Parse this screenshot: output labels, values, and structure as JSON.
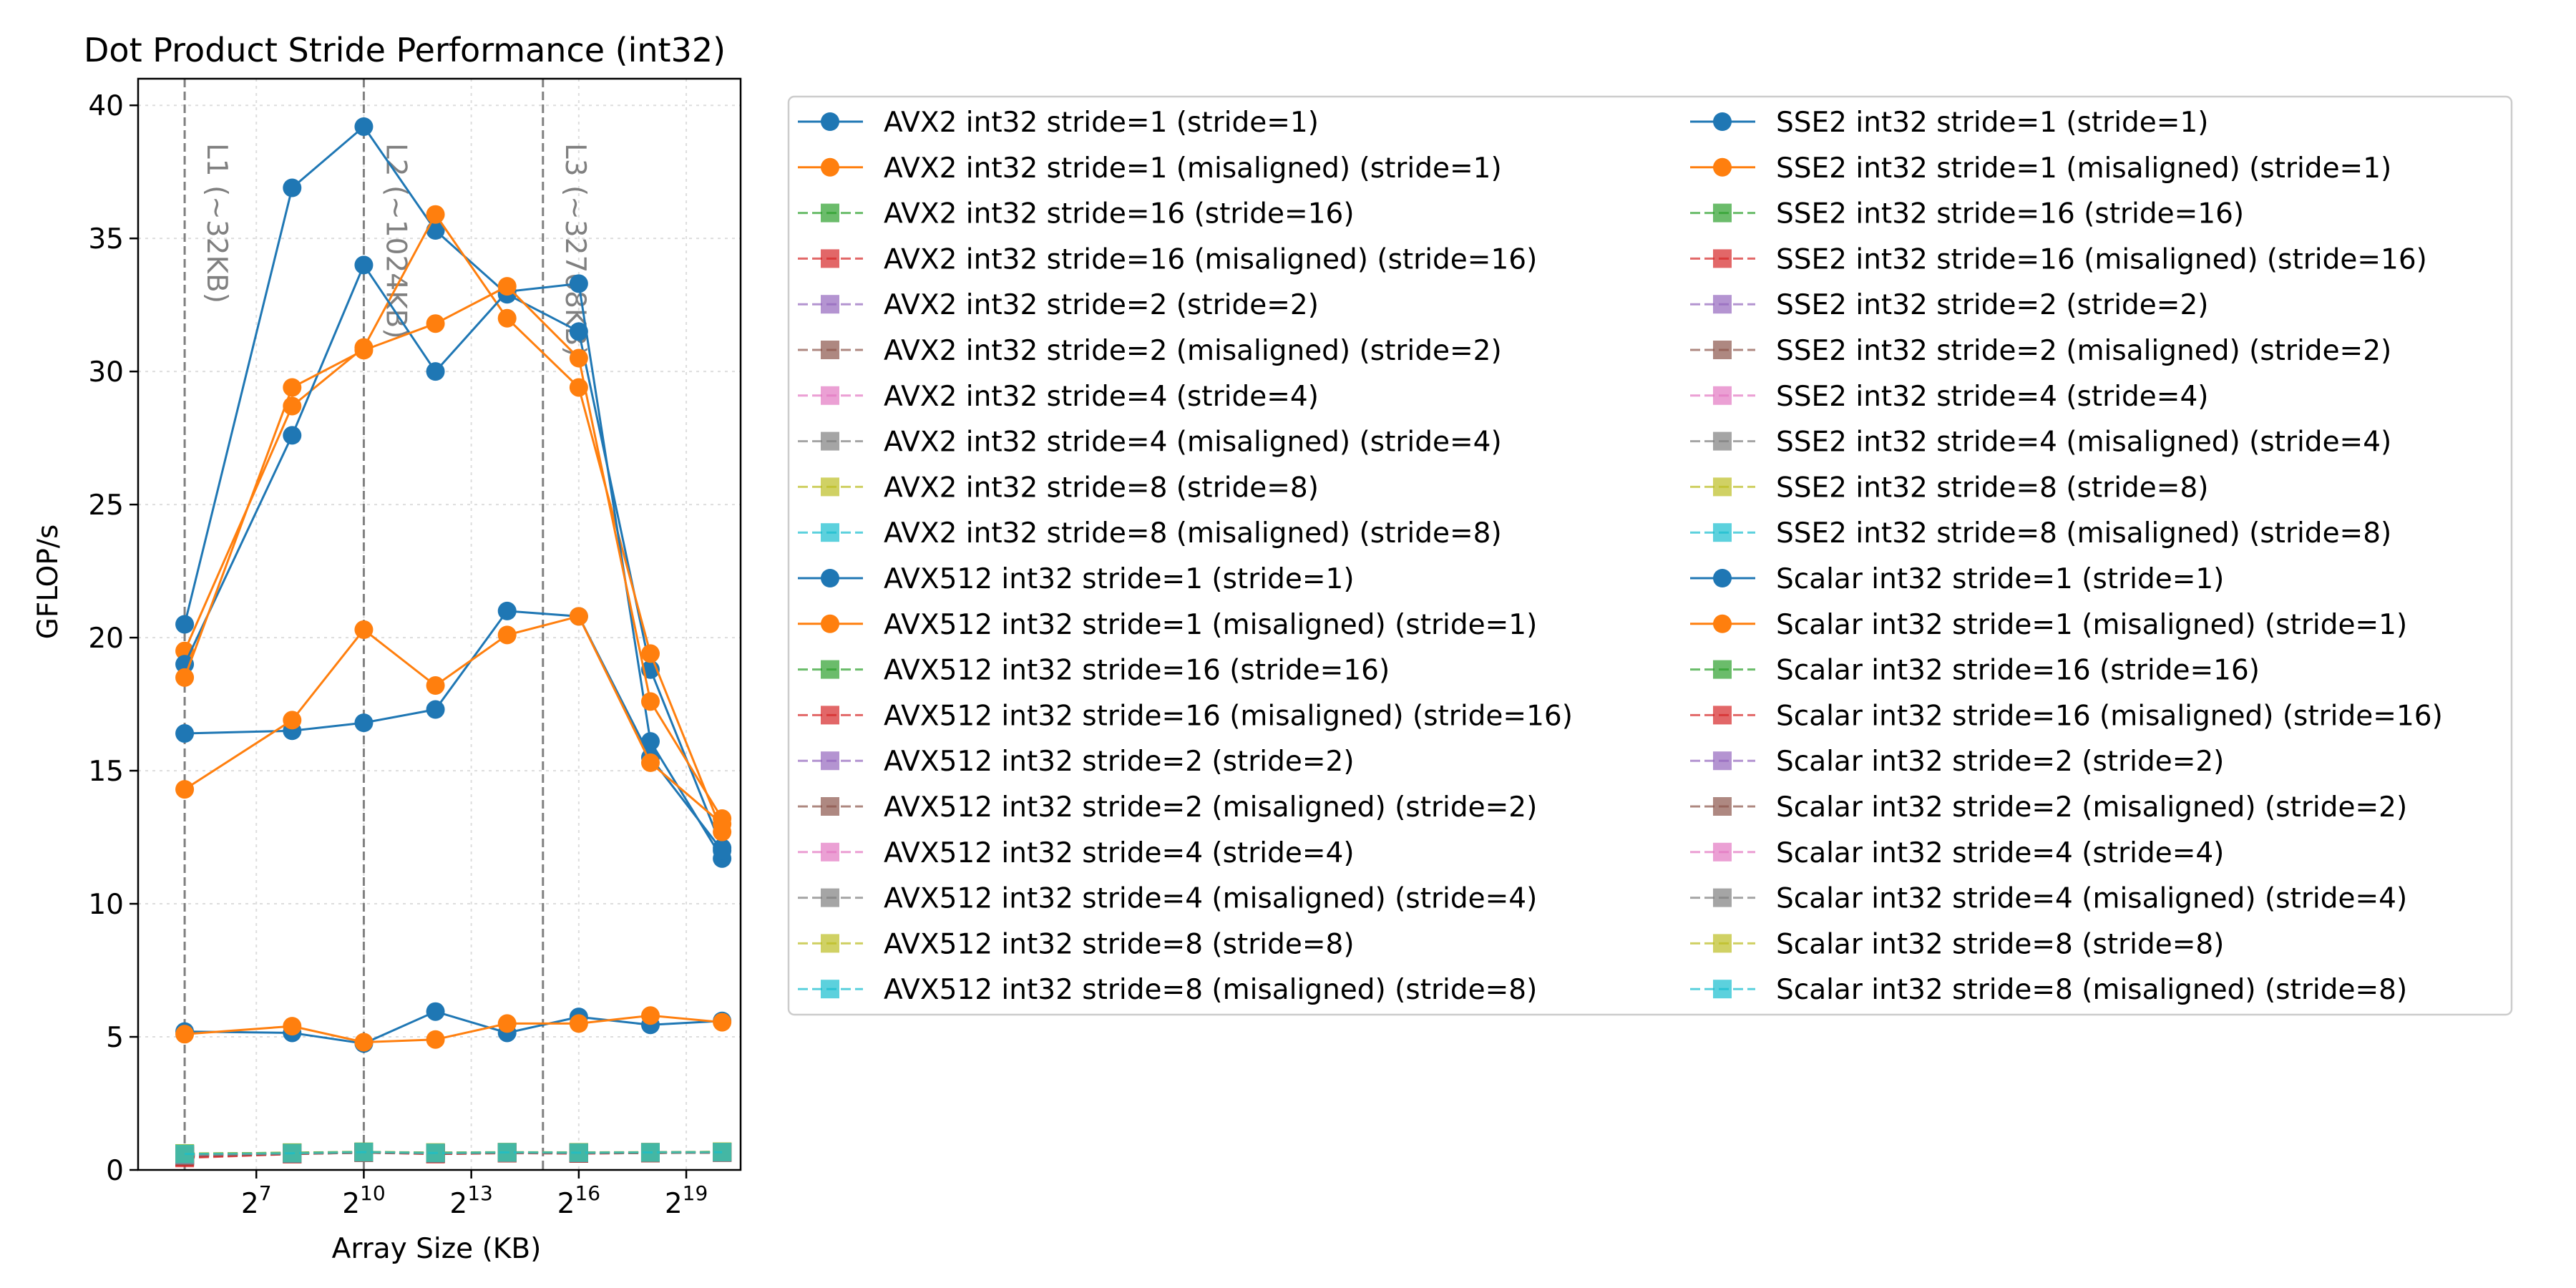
{
  "chart_data": {
    "type": "line",
    "title": "Dot Product Stride Performance (int32)",
    "xlabel": "Array Size (KB)",
    "ylabel": "GFLOP/s",
    "x_scale": "log2",
    "xlim": [
      13,
      1500000
    ],
    "ylim": [
      0,
      41
    ],
    "x": [
      32,
      256,
      1024,
      4096,
      16384,
      65536,
      262144,
      1048576
    ],
    "x_ticks": [
      {
        "value": 128,
        "base": "2",
        "exp": "7"
      },
      {
        "value": 1024,
        "base": "2",
        "exp": "10"
      },
      {
        "value": 8192,
        "base": "2",
        "exp": "13"
      },
      {
        "value": 65536,
        "base": "2",
        "exp": "16"
      },
      {
        "value": 524288,
        "base": "2",
        "exp": "19"
      }
    ],
    "y_ticks": [
      0,
      5,
      10,
      15,
      20,
      25,
      30,
      35,
      40
    ],
    "grid": true,
    "legend_position": "outside-right",
    "cache_lines": [
      {
        "x": 32,
        "label": "L1 (~32KB)"
      },
      {
        "x": 1024,
        "label": "L2 (~1024KB)"
      },
      {
        "x": 32768,
        "label": "L3 (~32768KB)"
      }
    ],
    "colors": {
      "blue": "#1f77b4",
      "orange": "#ff7f0e",
      "green": "#2ca02c",
      "red": "#d62728",
      "purple": "#9467bd",
      "brown": "#8c564b",
      "pink": "#e377c2",
      "gray": "#7f7f7f",
      "olive": "#bcbd22",
      "cyan": "#17becf"
    },
    "series": [
      {
        "name": "AVX2 int32 stride=1 (stride=1)",
        "color": "#1f77b4",
        "style": "solid",
        "marker": "circle",
        "values": [
          20.5,
          36.9,
          39.2,
          35.3,
          32.9,
          31.5,
          18.8,
          12.1
        ]
      },
      {
        "name": "AVX2 int32 stride=1 (misaligned) (stride=1)",
        "color": "#ff7f0e",
        "style": "solid",
        "marker": "circle",
        "values": [
          19.5,
          28.7,
          30.9,
          35.9,
          32.0,
          29.4,
          19.4,
          12.7
        ]
      },
      {
        "name": "AVX2 int32 stride=16 (stride=16)",
        "color": "#2ca02c",
        "style": "dashed",
        "marker": "square",
        "values": [
          0.6,
          0.65,
          0.68,
          0.62,
          0.66,
          0.64,
          0.66,
          0.68
        ]
      },
      {
        "name": "AVX2 int32 stride=16 (misaligned) (stride=16)",
        "color": "#d62728",
        "style": "dashed",
        "marker": "square",
        "values": [
          0.45,
          0.6,
          0.66,
          0.6,
          0.64,
          0.62,
          0.64,
          0.66
        ]
      },
      {
        "name": "AVX2 int32 stride=2 (stride=2)",
        "color": "#9467bd",
        "style": "dashed",
        "marker": "square",
        "values": [
          0.55,
          0.62,
          0.66,
          0.63,
          0.65,
          0.64,
          0.65,
          0.67
        ]
      },
      {
        "name": "AVX2 int32 stride=2 (misaligned) (stride=2)",
        "color": "#8c564b",
        "style": "dashed",
        "marker": "square",
        "values": [
          0.5,
          0.61,
          0.65,
          0.62,
          0.64,
          0.63,
          0.64,
          0.66
        ]
      },
      {
        "name": "AVX2 int32 stride=4 (stride=4)",
        "color": "#e377c2",
        "style": "dashed",
        "marker": "square",
        "values": [
          0.58,
          0.63,
          0.67,
          0.64,
          0.66,
          0.65,
          0.66,
          0.67
        ]
      },
      {
        "name": "AVX2 int32 stride=4 (misaligned) (stride=4)",
        "color": "#7f7f7f",
        "style": "dashed",
        "marker": "square",
        "values": [
          0.56,
          0.62,
          0.66,
          0.63,
          0.65,
          0.64,
          0.65,
          0.66
        ]
      },
      {
        "name": "AVX2 int32 stride=8 (stride=8)",
        "color": "#bcbd22",
        "style": "dashed",
        "marker": "square",
        "values": [
          0.62,
          0.64,
          0.68,
          0.65,
          0.67,
          0.66,
          0.67,
          0.68
        ]
      },
      {
        "name": "AVX2 int32 stride=8 (misaligned) (stride=8)",
        "color": "#17becf",
        "style": "dashed",
        "marker": "square",
        "values": [
          0.6,
          0.63,
          0.67,
          0.64,
          0.66,
          0.65,
          0.66,
          0.67
        ]
      },
      {
        "name": "AVX512 int32 stride=1 (stride=1)",
        "color": "#1f77b4",
        "style": "solid",
        "marker": "circle",
        "values": [
          19.0,
          27.6,
          34.0,
          30.0,
          33.0,
          33.3,
          16.1,
          11.7
        ]
      },
      {
        "name": "AVX512 int32 stride=1 (misaligned) (stride=1)",
        "color": "#ff7f0e",
        "style": "solid",
        "marker": "circle",
        "values": [
          18.5,
          29.4,
          30.8,
          31.8,
          33.2,
          30.5,
          17.6,
          13.2
        ]
      },
      {
        "name": "AVX512 int32 stride=16 (stride=16)",
        "color": "#2ca02c",
        "style": "dashed",
        "marker": "square",
        "values": [
          0.58,
          0.64,
          0.67,
          0.63,
          0.65,
          0.64,
          0.65,
          0.67
        ]
      },
      {
        "name": "AVX512 int32 stride=16 (misaligned) (stride=16)",
        "color": "#d62728",
        "style": "dashed",
        "marker": "square",
        "values": [
          0.48,
          0.6,
          0.65,
          0.61,
          0.64,
          0.62,
          0.64,
          0.66
        ]
      },
      {
        "name": "AVX512 int32 stride=2 (stride=2)",
        "color": "#9467bd",
        "style": "dashed",
        "marker": "square",
        "values": [
          0.55,
          0.62,
          0.66,
          0.63,
          0.65,
          0.64,
          0.65,
          0.66
        ]
      },
      {
        "name": "AVX512 int32 stride=2 (misaligned) (stride=2)",
        "color": "#8c564b",
        "style": "dashed",
        "marker": "square",
        "values": [
          0.52,
          0.61,
          0.65,
          0.62,
          0.64,
          0.63,
          0.64,
          0.66
        ]
      },
      {
        "name": "AVX512 int32 stride=4 (stride=4)",
        "color": "#e377c2",
        "style": "dashed",
        "marker": "square",
        "values": [
          0.57,
          0.63,
          0.66,
          0.64,
          0.65,
          0.65,
          0.66,
          0.67
        ]
      },
      {
        "name": "AVX512 int32 stride=4 (misaligned) (stride=4)",
        "color": "#7f7f7f",
        "style": "dashed",
        "marker": "square",
        "values": [
          0.55,
          0.62,
          0.66,
          0.63,
          0.65,
          0.64,
          0.65,
          0.66
        ]
      },
      {
        "name": "AVX512 int32 stride=8 (stride=8)",
        "color": "#bcbd22",
        "style": "dashed",
        "marker": "square",
        "values": [
          0.61,
          0.64,
          0.67,
          0.65,
          0.66,
          0.66,
          0.66,
          0.68
        ]
      },
      {
        "name": "AVX512 int32 stride=8 (misaligned) (stride=8)",
        "color": "#17becf",
        "style": "dashed",
        "marker": "square",
        "values": [
          0.6,
          0.63,
          0.67,
          0.64,
          0.66,
          0.65,
          0.66,
          0.67
        ]
      },
      {
        "name": "SSE2 int32 stride=1 (stride=1)",
        "color": "#1f77b4",
        "style": "solid",
        "marker": "circle",
        "values": [
          16.4,
          16.5,
          16.8,
          17.3,
          21.0,
          20.8,
          15.5,
          12.0
        ]
      },
      {
        "name": "SSE2 int32 stride=1 (misaligned) (stride=1)",
        "color": "#ff7f0e",
        "style": "solid",
        "marker": "circle",
        "values": [
          14.3,
          16.9,
          20.3,
          18.2,
          20.1,
          20.8,
          15.3,
          13.0
        ]
      },
      {
        "name": "SSE2 int32 stride=16 (stride=16)",
        "color": "#2ca02c",
        "style": "dashed",
        "marker": "square",
        "values": [
          0.59,
          0.64,
          0.67,
          0.63,
          0.65,
          0.64,
          0.65,
          0.67
        ]
      },
      {
        "name": "SSE2 int32 stride=16 (misaligned) (stride=16)",
        "color": "#d62728",
        "style": "dashed",
        "marker": "square",
        "values": [
          0.5,
          0.61,
          0.66,
          0.61,
          0.64,
          0.63,
          0.64,
          0.66
        ]
      },
      {
        "name": "SSE2 int32 stride=2 (stride=2)",
        "color": "#9467bd",
        "style": "dashed",
        "marker": "square",
        "values": [
          0.56,
          0.62,
          0.66,
          0.63,
          0.65,
          0.64,
          0.65,
          0.66
        ]
      },
      {
        "name": "SSE2 int32 stride=2 (misaligned) (stride=2)",
        "color": "#8c564b",
        "style": "dashed",
        "marker": "square",
        "values": [
          0.53,
          0.61,
          0.65,
          0.62,
          0.64,
          0.63,
          0.64,
          0.66
        ]
      },
      {
        "name": "SSE2 int32 stride=4 (stride=4)",
        "color": "#e377c2",
        "style": "dashed",
        "marker": "square",
        "values": [
          0.57,
          0.63,
          0.66,
          0.64,
          0.65,
          0.65,
          0.66,
          0.67
        ]
      },
      {
        "name": "SSE2 int32 stride=4 (misaligned) (stride=4)",
        "color": "#7f7f7f",
        "style": "dashed",
        "marker": "square",
        "values": [
          0.55,
          0.62,
          0.66,
          0.63,
          0.65,
          0.64,
          0.65,
          0.66
        ]
      },
      {
        "name": "SSE2 int32 stride=8 (stride=8)",
        "color": "#bcbd22",
        "style": "dashed",
        "marker": "square",
        "values": [
          0.61,
          0.64,
          0.67,
          0.65,
          0.66,
          0.66,
          0.66,
          0.68
        ]
      },
      {
        "name": "SSE2 int32 stride=8 (misaligned) (stride=8)",
        "color": "#17becf",
        "style": "dashed",
        "marker": "square",
        "values": [
          0.6,
          0.63,
          0.67,
          0.64,
          0.66,
          0.65,
          0.66,
          0.67
        ]
      },
      {
        "name": "Scalar int32 stride=1 (stride=1)",
        "color": "#1f77b4",
        "style": "solid",
        "marker": "circle",
        "values": [
          5.2,
          5.15,
          4.75,
          5.95,
          5.15,
          5.75,
          5.45,
          5.6
        ]
      },
      {
        "name": "Scalar int32 stride=1 (misaligned) (stride=1)",
        "color": "#ff7f0e",
        "style": "solid",
        "marker": "circle",
        "values": [
          5.1,
          5.4,
          4.8,
          4.9,
          5.5,
          5.5,
          5.8,
          5.55
        ]
      },
      {
        "name": "Scalar int32 stride=16 (stride=16)",
        "color": "#2ca02c",
        "style": "dashed",
        "marker": "square",
        "values": [
          0.58,
          0.63,
          0.66,
          0.62,
          0.65,
          0.64,
          0.65,
          0.66
        ]
      },
      {
        "name": "Scalar int32 stride=16 (misaligned) (stride=16)",
        "color": "#d62728",
        "style": "dashed",
        "marker": "square",
        "values": [
          0.5,
          0.6,
          0.65,
          0.6,
          0.63,
          0.62,
          0.64,
          0.65
        ]
      },
      {
        "name": "Scalar int32 stride=2 (stride=2)",
        "color": "#9467bd",
        "style": "dashed",
        "marker": "square",
        "values": [
          0.55,
          0.62,
          0.66,
          0.63,
          0.65,
          0.64,
          0.65,
          0.66
        ]
      },
      {
        "name": "Scalar int32 stride=2 (misaligned) (stride=2)",
        "color": "#8c564b",
        "style": "dashed",
        "marker": "square",
        "values": [
          0.53,
          0.61,
          0.65,
          0.62,
          0.64,
          0.63,
          0.64,
          0.65
        ]
      },
      {
        "name": "Scalar int32 stride=4 (stride=4)",
        "color": "#e377c2",
        "style": "dashed",
        "marker": "square",
        "values": [
          0.57,
          0.63,
          0.66,
          0.64,
          0.65,
          0.65,
          0.66,
          0.67
        ]
      },
      {
        "name": "Scalar int32 stride=4 (misaligned) (stride=4)",
        "color": "#7f7f7f",
        "style": "dashed",
        "marker": "square",
        "values": [
          0.55,
          0.62,
          0.66,
          0.63,
          0.65,
          0.64,
          0.65,
          0.66
        ]
      },
      {
        "name": "Scalar int32 stride=8 (stride=8)",
        "color": "#bcbd22",
        "style": "dashed",
        "marker": "square",
        "values": [
          0.61,
          0.64,
          0.67,
          0.65,
          0.66,
          0.66,
          0.66,
          0.68
        ]
      },
      {
        "name": "Scalar int32 stride=8 (misaligned) (stride=8)",
        "color": "#17becf",
        "style": "dashed",
        "marker": "square",
        "values": [
          0.6,
          0.63,
          0.67,
          0.64,
          0.66,
          0.65,
          0.66,
          0.67
        ]
      }
    ]
  }
}
